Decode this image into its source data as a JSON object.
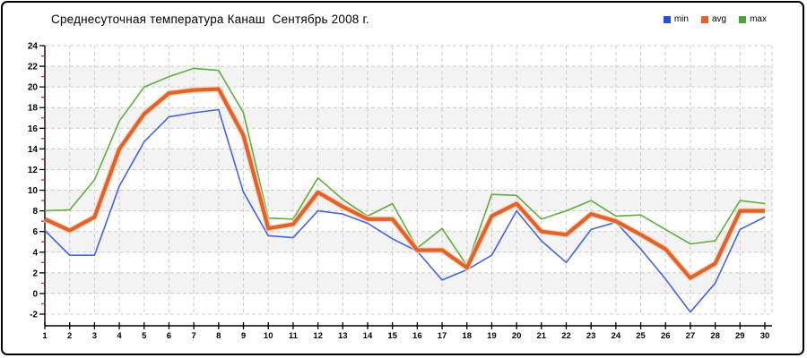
{
  "title": "Среднесуточная температура Канаш  Сентябрь 2008 г.",
  "legend": [
    {
      "label": "min",
      "color": "#2c4bd6"
    },
    {
      "label": "avg",
      "color": "#e2622b"
    },
    {
      "label": "max",
      "color": "#4ba332"
    }
  ],
  "chart_data": {
    "type": "line",
    "title": "Среднесуточная температура Канаш  Сентябрь 2008 г.",
    "x": [
      1,
      2,
      3,
      4,
      5,
      6,
      7,
      8,
      9,
      10,
      11,
      12,
      13,
      14,
      15,
      16,
      17,
      18,
      19,
      20,
      21,
      22,
      23,
      24,
      25,
      26,
      27,
      28,
      29,
      30
    ],
    "xlabel": "",
    "ylabel": "",
    "ylim": [
      -2,
      24
    ],
    "ytick_step": 2,
    "grid": "dashed-both",
    "legend_position": "top-right",
    "series": [
      {
        "name": "min",
        "color": "#4465dc",
        "values": [
          6.1,
          3.7,
          3.7,
          10.4,
          14.7,
          17.1,
          17.5,
          17.8,
          9.8,
          5.6,
          5.4,
          8.0,
          7.7,
          6.8,
          5.3,
          4.1,
          1.3,
          2.3,
          3.7,
          8.0,
          5.1,
          3.0,
          6.2,
          6.9,
          4.3,
          1.4,
          -1.8,
          1.0,
          6.2,
          7.4
        ]
      },
      {
        "name": "avg",
        "color": "#e2622b",
        "values": [
          7.2,
          6.1,
          7.4,
          14.0,
          17.4,
          19.4,
          19.7,
          19.8,
          15.3,
          6.3,
          6.7,
          9.8,
          8.4,
          7.2,
          7.2,
          4.2,
          4.2,
          2.5,
          7.5,
          8.7,
          6.0,
          5.7,
          7.7,
          7.0,
          5.7,
          4.3,
          1.5,
          2.9,
          8.0,
          8.0
        ]
      },
      {
        "name": "max",
        "color": "#5fae3e",
        "values": [
          8.0,
          8.1,
          11.0,
          16.7,
          20.0,
          21.0,
          21.8,
          21.6,
          17.5,
          7.3,
          7.2,
          11.2,
          9.1,
          7.5,
          8.7,
          4.4,
          6.3,
          2.7,
          9.6,
          9.5,
          7.2,
          8.0,
          9.0,
          7.5,
          7.6,
          6.2,
          4.8,
          5.1,
          9.0,
          8.7
        ]
      }
    ]
  },
  "style_colors": {
    "band_gray": "#f3f3f3",
    "gridline": "#cccccc",
    "axis": "#000000",
    "minor_tick_red": "#d42a2a",
    "avg_halo": "#f8cfb0"
  }
}
